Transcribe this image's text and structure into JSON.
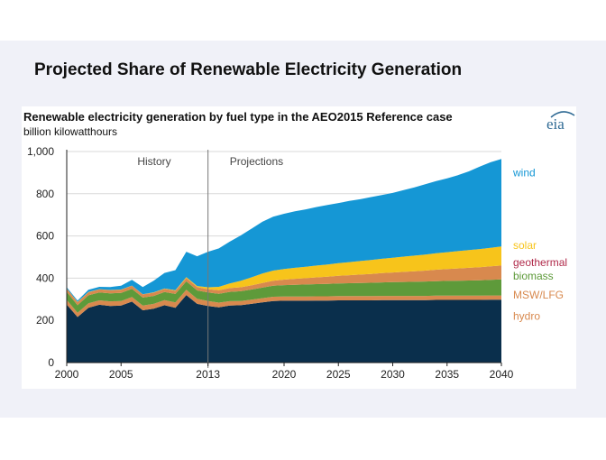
{
  "slide": {
    "title": "Projected Share of Renewable Electricity Generation"
  },
  "logo": {
    "text": "eia"
  },
  "colors": {
    "hydro": "#0a2f4c",
    "msw": "#d8894e",
    "biomass": "#5e9a3a",
    "geothermal": "#b02a4a",
    "solar": "#f7c41b",
    "wind": "#1597d5",
    "axis": "#222222",
    "divider": "#777777"
  },
  "chart_data": {
    "type": "area",
    "stacked": true,
    "title": "Renewable electricity generation by fuel type in the AEO2015  Reference case",
    "ylabel": "billion kilowatthours",
    "xlabel": "",
    "xlim": [
      2000,
      2040
    ],
    "ylim": [
      0,
      1000
    ],
    "grid": true,
    "x": [
      2000,
      2001,
      2002,
      2003,
      2004,
      2005,
      2006,
      2007,
      2008,
      2009,
      2010,
      2011,
      2012,
      2013,
      2014,
      2015,
      2016,
      2017,
      2018,
      2019,
      2020,
      2021,
      2022,
      2023,
      2024,
      2025,
      2026,
      2027,
      2028,
      2029,
      2030,
      2031,
      2032,
      2033,
      2034,
      2035,
      2036,
      2037,
      2038,
      2039,
      2040
    ],
    "series": [
      {
        "name": "hydro",
        "color_key": "hydro",
        "values": [
          275,
          216,
          260,
          274,
          268,
          270,
          289,
          248,
          255,
          272,
          260,
          320,
          278,
          268,
          262,
          270,
          272,
          278,
          285,
          292,
          293,
          293,
          293,
          294,
          294,
          295,
          295,
          295,
          295,
          296,
          296,
          296,
          296,
          296,
          297,
          297,
          297,
          297,
          297,
          298,
          298
        ]
      },
      {
        "name": "MSW/LFG",
        "color_key": "msw",
        "values": [
          22,
          20,
          21,
          21,
          22,
          22,
          22,
          22,
          23,
          24,
          25,
          25,
          24,
          24,
          22,
          21,
          20,
          20,
          20,
          20,
          20,
          20,
          20,
          20,
          20,
          20,
          20,
          20,
          20,
          20,
          20,
          20,
          20,
          20,
          20,
          20,
          20,
          20,
          20,
          20,
          20
        ]
      },
      {
        "name": "biomass",
        "color_key": "biomass",
        "values": [
          38,
          36,
          38,
          37,
          38,
          38,
          38,
          38,
          38,
          38,
          40,
          40,
          40,
          40,
          42,
          44,
          46,
          48,
          50,
          52,
          54,
          56,
          57,
          58,
          59,
          60,
          61,
          62,
          63,
          64,
          65,
          66,
          67,
          68,
          69,
          70,
          71,
          72,
          73,
          74,
          76
        ]
      },
      {
        "name": "geothermal",
        "color_key": "msw",
        "values": [
          15,
          14,
          14,
          15,
          15,
          15,
          15,
          15,
          15,
          15,
          15,
          16,
          16,
          16,
          17,
          18,
          19,
          20,
          22,
          24,
          26,
          28,
          30,
          32,
          34,
          36,
          38,
          40,
          42,
          44,
          46,
          48,
          50,
          52,
          54,
          56,
          58,
          60,
          62,
          64,
          66
        ]
      },
      {
        "name": "geothermal",
        "color_key": "geothermal",
        "values": [
          0,
          0,
          0,
          0,
          0,
          0,
          0,
          0,
          0,
          0,
          0,
          0,
          0,
          0,
          0,
          0,
          0,
          0,
          0,
          0,
          0,
          0,
          0,
          0,
          0,
          0,
          0,
          0,
          0,
          0,
          0,
          0,
          0,
          0,
          0,
          0,
          0,
          0,
          0,
          0,
          0
        ]
      },
      {
        "name": "solar",
        "color_key": "solar",
        "values": [
          1,
          1,
          1,
          1,
          1,
          1,
          1,
          1,
          2,
          2,
          3,
          4,
          5,
          9,
          16,
          22,
          30,
          38,
          45,
          48,
          50,
          52,
          54,
          56,
          58,
          60,
          62,
          64,
          66,
          68,
          70,
          72,
          74,
          76,
          78,
          80,
          82,
          84,
          86,
          88,
          90
        ]
      },
      {
        "name": "wind",
        "color_key": "wind",
        "values": [
          6,
          7,
          11,
          11,
          14,
          18,
          27,
          34,
          55,
          74,
          95,
          120,
          141,
          168,
          182,
          198,
          215,
          230,
          245,
          255,
          262,
          268,
          272,
          277,
          282,
          285,
          290,
          293,
          298,
          302,
          307,
          315,
          323,
          333,
          342,
          350,
          360,
          373,
          390,
          405,
          415
        ]
      }
    ],
    "legend": [
      {
        "label": "wind",
        "color_key": "wind",
        "value": 900
      },
      {
        "label": "solar",
        "color_key": "solar",
        "value": 555
      },
      {
        "label": "geothermal",
        "color_key": "geothermal",
        "value": 475
      },
      {
        "label": "biomass",
        "color_key": "biomass",
        "value": 410
      },
      {
        "label": "MSW/LFG",
        "color_key": "msw",
        "value": 320
      },
      {
        "label": "hydro",
        "color_key": "msw",
        "value": 220
      }
    ],
    "y_ticks": [
      0,
      200,
      400,
      600,
      800,
      1000
    ],
    "y_tick_labels": [
      "0",
      "200",
      "400",
      "600",
      "800",
      "1,000"
    ],
    "x_ticks": [
      2000,
      2005,
      2013,
      2020,
      2025,
      2030,
      2035,
      2040
    ],
    "x_tick_labels": [
      "2000",
      "2005",
      "2013",
      "2020",
      "2025",
      "2030",
      "2035",
      "2040"
    ],
    "divider_year": 2013,
    "annotations": [
      {
        "text": "History",
        "year": 2006.5
      },
      {
        "text": "Projections",
        "year": 2015
      }
    ]
  }
}
